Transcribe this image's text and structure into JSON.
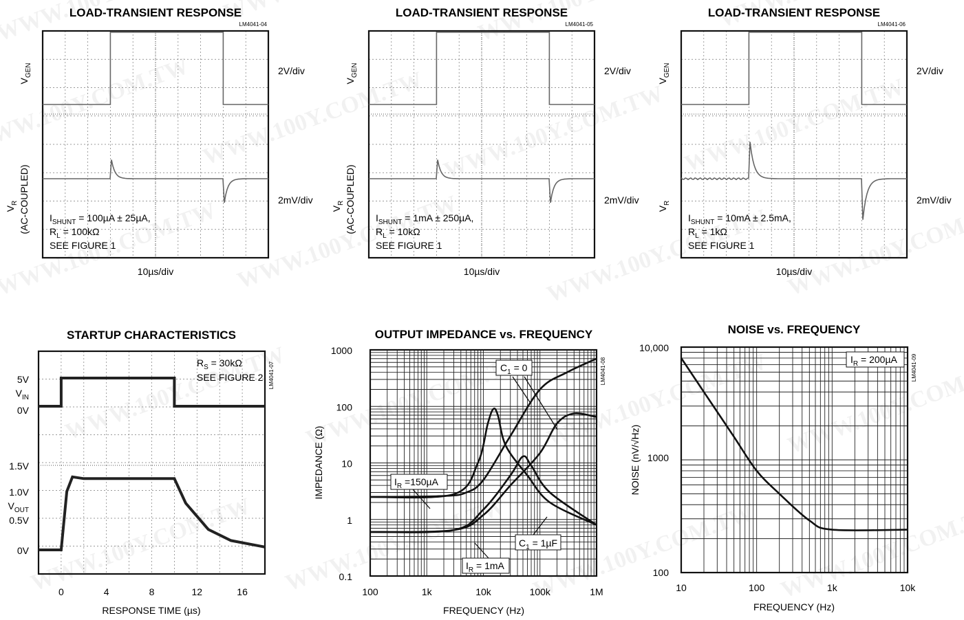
{
  "watermark": "WWW.100Y.COM.TW",
  "scopes": [
    {
      "title": "LOAD-TRANSIENT RESPONSE",
      "code": "LM4041-04",
      "top_ylabel": "V",
      "top_ysub": "GEN",
      "top_scale": "2V/div",
      "bot_ylabel": "V",
      "bot_ysub": "R",
      "bot_ylabel2": "(AC-COUPLED)",
      "bot_scale": "2mV/div",
      "xscale": "10µs/div",
      "note1": "I",
      "note1sub": "SHUNT",
      "note1rest": " = 100µA ± 25µA,",
      "note2": "R",
      "note2sub": "L",
      "note2rest": " = 100kΩ",
      "note3": "SEE FIGURE 1"
    },
    {
      "title": "LOAD-TRANSIENT RESPONSE",
      "code": "LM4041-05",
      "top_ylabel": "V",
      "top_ysub": "GEN",
      "top_scale": "2V/div",
      "bot_ylabel": "V",
      "bot_ysub": "R",
      "bot_ylabel2": "(AC-COUPLED)",
      "bot_scale": "2mV/div",
      "xscale": "10µs/div",
      "note1": "I",
      "note1sub": "SHUNT",
      "note1rest": " = 1mA ± 250µA,",
      "note2": "R",
      "note2sub": "L",
      "note2rest": " = 10kΩ",
      "note3": "SEE FIGURE 1"
    },
    {
      "title": "LOAD-TRANSIENT RESPONSE",
      "code": "LM4041-06",
      "top_ylabel": "V",
      "top_ysub": "GEN",
      "top_scale": "2V/div",
      "bot_ylabel": "V",
      "bot_ysub": "R",
      "bot_ylabel2": "",
      "bot_scale": "2mV/div",
      "xscale": "10µs/div",
      "note1": "I",
      "note1sub": "SHUNT",
      "note1rest": " = 10mA ± 2.5mA,",
      "note2": "R",
      "note2sub": "L",
      "note2rest": " = 1kΩ",
      "note3": "SEE FIGURE 1"
    }
  ],
  "startup": {
    "title": "STARTUP CHARACTERISTICS",
    "code": "LM4041-07",
    "note1": "R",
    "note1sub": "S",
    "note1rest": " = 30kΩ",
    "note2": "SEE FIGURE 2",
    "vin_labels": {
      "top": "5V",
      "name": "V",
      "name_sub": "IN",
      "bottom": "0V"
    },
    "vout_labels": {
      "l15": "1.5V",
      "l10": "1.0V",
      "name": "V",
      "name_sub": "OUT",
      "l05": "0.5V",
      "l0": "0V"
    },
    "xticks": [
      "0",
      "4",
      "8",
      "12",
      "16"
    ],
    "xlabel": "RESPONSE TIME (µs)"
  },
  "chart_data": [
    {
      "type": "line",
      "title": "LOAD-TRANSIENT RESPONSE",
      "x_scale": "10µs/div",
      "series": [
        {
          "name": "VGEN",
          "values": [
            [
              0,
              0
            ],
            [
              1.5,
              0
            ],
            [
              1.5,
              1
            ],
            [
              4.0,
              1
            ],
            [
              4.0,
              0
            ],
            [
              5.0,
              0
            ]
          ]
        }
      ]
    },
    {
      "type": "line",
      "title": "LOAD-TRANSIENT RESPONSE",
      "x_scale": "10µs/div",
      "series": [
        {
          "name": "VGEN",
          "values": [
            [
              0,
              0
            ],
            [
              1.5,
              0
            ],
            [
              1.5,
              1
            ],
            [
              4.0,
              1
            ],
            [
              4.0,
              0
            ],
            [
              5.0,
              0
            ]
          ]
        }
      ]
    },
    {
      "type": "line",
      "title": "LOAD-TRANSIENT RESPONSE",
      "x_scale": "10µs/div",
      "series": [
        {
          "name": "VGEN",
          "values": [
            [
              0,
              0
            ],
            [
              1.5,
              0
            ],
            [
              1.5,
              1
            ],
            [
              4.0,
              1
            ],
            [
              4.0,
              0
            ],
            [
              5.0,
              0
            ]
          ]
        }
      ]
    },
    {
      "type": "line",
      "title": "STARTUP CHARACTERISTICS",
      "xlabel": "RESPONSE TIME (µs)",
      "xlim": [
        -2,
        18
      ],
      "series": [
        {
          "name": "VIN",
          "values": [
            [
              -2,
              0
            ],
            [
              0,
              0
            ],
            [
              0,
              5
            ],
            [
              10,
              5
            ],
            [
              10,
              0
            ],
            [
              18,
              0
            ]
          ]
        },
        {
          "name": "VOUT",
          "values": [
            [
              -2,
              0
            ],
            [
              0,
              0
            ],
            [
              0.5,
              1.0
            ],
            [
              1,
              1.25
            ],
            [
              2,
              1.22
            ],
            [
              10,
              1.22
            ],
            [
              11,
              0.8
            ],
            [
              13,
              0.35
            ],
            [
              15,
              0.16
            ],
            [
              18,
              0.05
            ]
          ]
        }
      ]
    },
    {
      "type": "line",
      "title": "OUTPUT IMPEDANCE vs. FREQUENCY",
      "xlabel": "FREQUENCY (Hz)",
      "ylabel": "IMPEDANCE (Ω)",
      "x_log": true,
      "y_log": true,
      "xlim": [
        100,
        1000000
      ],
      "ylim": [
        0.1,
        1000
      ],
      "xticks": [
        "100",
        "1k",
        "10k",
        "100k",
        "1M"
      ],
      "yticks": [
        "0.1",
        "1",
        "10",
        "100",
        "1000"
      ],
      "series": [
        {
          "name": "IR = 150µA, C1 = 0",
          "values": [
            [
              100,
              2.5
            ],
            [
              2000,
              2.6
            ],
            [
              5000,
              3
            ],
            [
              10000,
              5
            ],
            [
              30000,
              30
            ],
            [
              100000,
              200
            ],
            [
              300000,
              400
            ],
            [
              1000000,
              700
            ]
          ]
        },
        {
          "name": "IR = 150µA, C1 = 1µF",
          "values": [
            [
              100,
              2.5
            ],
            [
              3000,
              2.8
            ],
            [
              8000,
              10
            ],
            [
              12000,
              50
            ],
            [
              15000,
              90
            ],
            [
              18000,
              70
            ],
            [
              25000,
              20
            ],
            [
              60000,
              6
            ],
            [
              150000,
              2
            ],
            [
              1000000,
              0.8
            ]
          ]
        },
        {
          "name": "IR = 1mA, C1 = 0",
          "values": [
            [
              100,
              0.6
            ],
            [
              3000,
              0.65
            ],
            [
              10000,
              1.2
            ],
            [
              30000,
              4
            ],
            [
              100000,
              15
            ],
            [
              200000,
              50
            ],
            [
              400000,
              75
            ],
            [
              1000000,
              65
            ]
          ]
        },
        {
          "name": "IR = 1mA, C1 = 1µF",
          "values": [
            [
              100,
              0.6
            ],
            [
              3000,
              0.65
            ],
            [
              10000,
              1.5
            ],
            [
              30000,
              6
            ],
            [
              50000,
              13
            ],
            [
              70000,
              9
            ],
            [
              150000,
              3
            ],
            [
              1000000,
              0.8
            ]
          ]
        }
      ],
      "annotations": [
        "C1 = 0",
        "C1 = 1µF",
        "IR = 150µA",
        "IR = 1mA"
      ]
    },
    {
      "type": "line",
      "title": "NOISE vs. FREQUENCY",
      "xlabel": "FREQUENCY (Hz)",
      "ylabel": "NOISE (nV/√Hz)",
      "x_log": true,
      "y_log": true,
      "xlim": [
        10,
        10000
      ],
      "ylim": [
        100,
        10000
      ],
      "xticks": [
        "10",
        "100",
        "1k",
        "10k"
      ],
      "yticks": [
        "100",
        "1000",
        "10,000"
      ],
      "series": [
        {
          "name": "IR = 200µA",
          "values": [
            [
              10,
              8000
            ],
            [
              20,
              4000
            ],
            [
              50,
              1600
            ],
            [
              100,
              800
            ],
            [
              200,
              500
            ],
            [
              500,
              290
            ],
            [
              1000,
              240
            ],
            [
              10000,
              240
            ]
          ]
        }
      ]
    }
  ],
  "impedance": {
    "title": "OUTPUT IMPEDANCE vs. FREQUENCY",
    "code": "LM4041-08",
    "ylabel": "IMPEDANCE (Ω)",
    "xlabel": "FREQUENCY (Hz)",
    "xticks": [
      "100",
      "1k",
      "10k",
      "100k",
      "1M"
    ],
    "yticks": [
      "1000",
      "100",
      "10",
      "1",
      "0.1"
    ],
    "ann_c0": "C",
    "ann_c0_sub": "1",
    "ann_c0_rest": " = 0",
    "ann_c1": "C",
    "ann_c1_sub": "1",
    "ann_c1_rest": " = 1µF",
    "ann_ir150": "I",
    "ann_ir150_sub": "R",
    "ann_ir150_rest": " =150µA",
    "ann_ir1": "I",
    "ann_ir1_sub": "R",
    "ann_ir1_rest": " = 1mA"
  },
  "noise": {
    "title": "NOISE vs. FREQUENCY",
    "code": "LM4041-09",
    "ylabel": "NOISE (nV/√Hz)",
    "xlabel": "FREQUENCY (Hz)",
    "xticks": [
      "10",
      "100",
      "1k",
      "10k"
    ],
    "yticks": [
      "10,000",
      "1000",
      "100"
    ],
    "ann": "I",
    "ann_sub": "R",
    "ann_rest": " = 200µA"
  }
}
